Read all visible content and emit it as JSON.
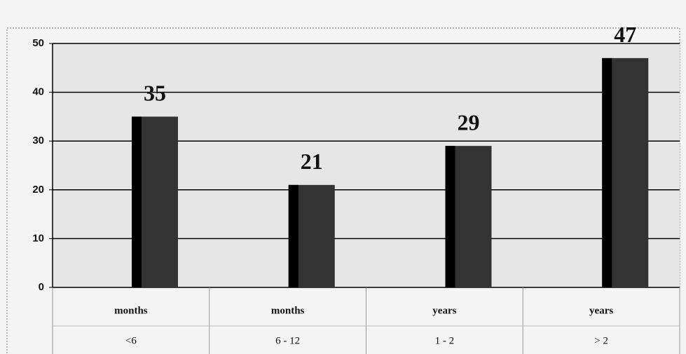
{
  "chart_data": {
    "type": "bar",
    "category_units": [
      "months",
      "months",
      "years",
      "years"
    ],
    "categories": [
      "<6",
      "6 - 12",
      "1 - 2",
      "> 2"
    ],
    "values": [
      35,
      21,
      29,
      47
    ],
    "color": "#333333",
    "ylim": [
      0,
      50
    ],
    "yticks": [
      0,
      10,
      20,
      30,
      40,
      50
    ],
    "grid": true
  }
}
